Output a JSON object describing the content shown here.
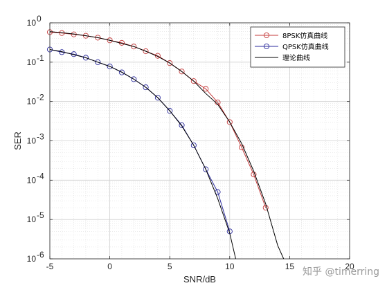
{
  "watermark": "知乎 @timerring",
  "chart_data": {
    "type": "line",
    "title": "",
    "xlabel": "SNR/dB",
    "ylabel": "SER",
    "xlim": [
      -5,
      20
    ],
    "ylim": [
      1e-06,
      1
    ],
    "yscale": "log",
    "grid": true,
    "minor_grid": true,
    "legend_position": "top-right",
    "x_ticks": [
      {
        "value": -5,
        "label": "-5"
      },
      {
        "value": 0,
        "label": "0"
      },
      {
        "value": 5,
        "label": "5"
      },
      {
        "value": 10,
        "label": "10"
      },
      {
        "value": 15,
        "label": "15"
      },
      {
        "value": 20,
        "label": "20"
      }
    ],
    "y_ticks": [
      {
        "exp": 0,
        "base": "10",
        "sup": "0"
      },
      {
        "exp": -1,
        "base": "10",
        "sup": "-1"
      },
      {
        "exp": -2,
        "base": "10",
        "sup": "-2"
      },
      {
        "exp": -3,
        "base": "10",
        "sup": "-3"
      },
      {
        "exp": -4,
        "base": "10",
        "sup": "-4"
      },
      {
        "exp": -5,
        "base": "10",
        "sup": "-5"
      },
      {
        "exp": -6,
        "base": "10",
        "sup": "-6"
      }
    ],
    "series": [
      {
        "name": "8PSK仿真曲线",
        "color": "#c43a3a",
        "marker": "circle",
        "x": [
          -5,
          -4,
          -3,
          -2,
          -1,
          0,
          1,
          2,
          3,
          4,
          5,
          6,
          7,
          8,
          9,
          10,
          11,
          12,
          13
        ],
        "values": [
          0.58,
          0.55,
          0.51,
          0.47,
          0.42,
          0.36,
          0.31,
          0.25,
          0.19,
          0.145,
          0.095,
          0.058,
          0.033,
          0.021,
          0.0095,
          0.003,
          0.00068,
          0.00014,
          2e-05
        ]
      },
      {
        "name": "QPSK仿真曲线",
        "color": "#2a2a9c",
        "marker": "circle",
        "x": [
          -5,
          -4,
          -3,
          -2,
          -1,
          0,
          1,
          2,
          3,
          4,
          5,
          6,
          7,
          8,
          9,
          10
        ],
        "values": [
          0.21,
          0.18,
          0.16,
          0.13,
          0.1,
          0.078,
          0.055,
          0.037,
          0.023,
          0.0125,
          0.0058,
          0.0025,
          0.00077,
          0.00019,
          5e-05,
          5e-06
        ]
      },
      {
        "name": "理论曲线",
        "color": "#000000",
        "marker": "none",
        "x": [
          -5,
          -4,
          -3,
          -2,
          -1,
          0,
          1,
          2,
          3,
          4,
          5,
          6,
          7,
          8,
          9,
          10,
          11,
          12,
          13,
          14,
          14.5
        ],
        "values": [
          0.6,
          0.56,
          0.52,
          0.47,
          0.42,
          0.36,
          0.3,
          0.25,
          0.19,
          0.14,
          0.095,
          0.058,
          0.033,
          0.016,
          0.0085,
          0.003,
          0.00085,
          0.00017,
          2.5e-05,
          2.2e-06,
          1e-06
        ],
        "extra_x": [
          -5,
          -4,
          -3,
          -2,
          -1,
          0,
          1,
          2,
          3,
          4,
          5,
          6,
          7,
          8,
          9,
          10,
          10.5
        ],
        "extra_values": [
          0.21,
          0.185,
          0.155,
          0.13,
          0.1,
          0.078,
          0.056,
          0.037,
          0.023,
          0.0125,
          0.0058,
          0.0024,
          0.00077,
          0.00019,
          3.4e-05,
          4.5e-06,
          1e-06
        ]
      }
    ]
  }
}
